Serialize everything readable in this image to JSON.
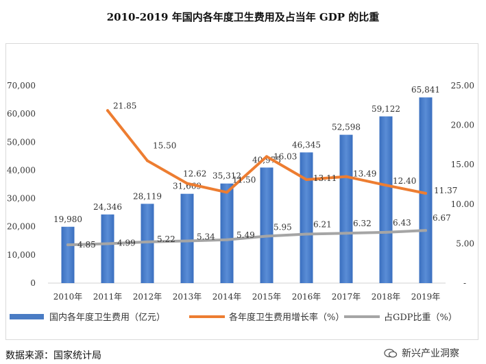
{
  "title": "2010-2019 年国内各年度卫生费用及占当年 GDP 的比重",
  "source": "数据来源：国家统计局",
  "watermark": "新兴产业洞察",
  "chart_data": {
    "type": "bar",
    "categories": [
      "2010年",
      "2011年",
      "2012年",
      "2013年",
      "2014年",
      "2015年",
      "2016年",
      "2017年",
      "2018年",
      "2019年"
    ],
    "series": [
      {
        "name": "国内各年度卫生费用（亿元）",
        "type": "bar",
        "axis": "left",
        "values": [
          19980,
          24346,
          28119,
          31669,
          35312,
          40975,
          46345,
          52598,
          59122,
          65841
        ],
        "labels": [
          "19,980",
          "24,346",
          "28,119",
          "31,669",
          "35,312",
          "40,975",
          "46,345",
          "52,598",
          "59,122",
          "65,841"
        ]
      },
      {
        "name": "各年度卫生费用增长率（%）",
        "type": "line",
        "axis": "right",
        "values": [
          null,
          21.85,
          15.5,
          12.62,
          11.5,
          16.03,
          13.11,
          13.49,
          12.4,
          11.37
        ],
        "labels": [
          null,
          "21.85",
          "15.50",
          "12.62",
          "11.50",
          "16.03",
          "13.11",
          "13.49",
          "12.40",
          "11.37"
        ]
      },
      {
        "name": "占GDP比重（%）",
        "type": "line",
        "axis": "right",
        "values": [
          4.85,
          4.99,
          5.22,
          5.34,
          5.49,
          5.95,
          6.21,
          6.32,
          6.43,
          6.67
        ],
        "labels": [
          "4.85",
          "4.99",
          "5.22",
          "5.34",
          "5.49",
          "5.95",
          "6.21",
          "6.32",
          "6.43",
          "6.67"
        ]
      }
    ],
    "ylim_left": [
      0,
      70000
    ],
    "yticks_left": [
      "0",
      "10,000",
      "20,000",
      "30,000",
      "40,000",
      "50,000",
      "60,000",
      "70,000"
    ],
    "ylim_right": [
      0,
      25
    ],
    "yticks_right": [
      "-",
      "5.00",
      "10.00",
      "15.00",
      "20.00",
      "25.00"
    ],
    "colors": {
      "bar": "#4a7cc4",
      "growth": "#ed7d31",
      "gdp": "#a5a5a5"
    },
    "legend_position": "bottom",
    "grid": false
  }
}
